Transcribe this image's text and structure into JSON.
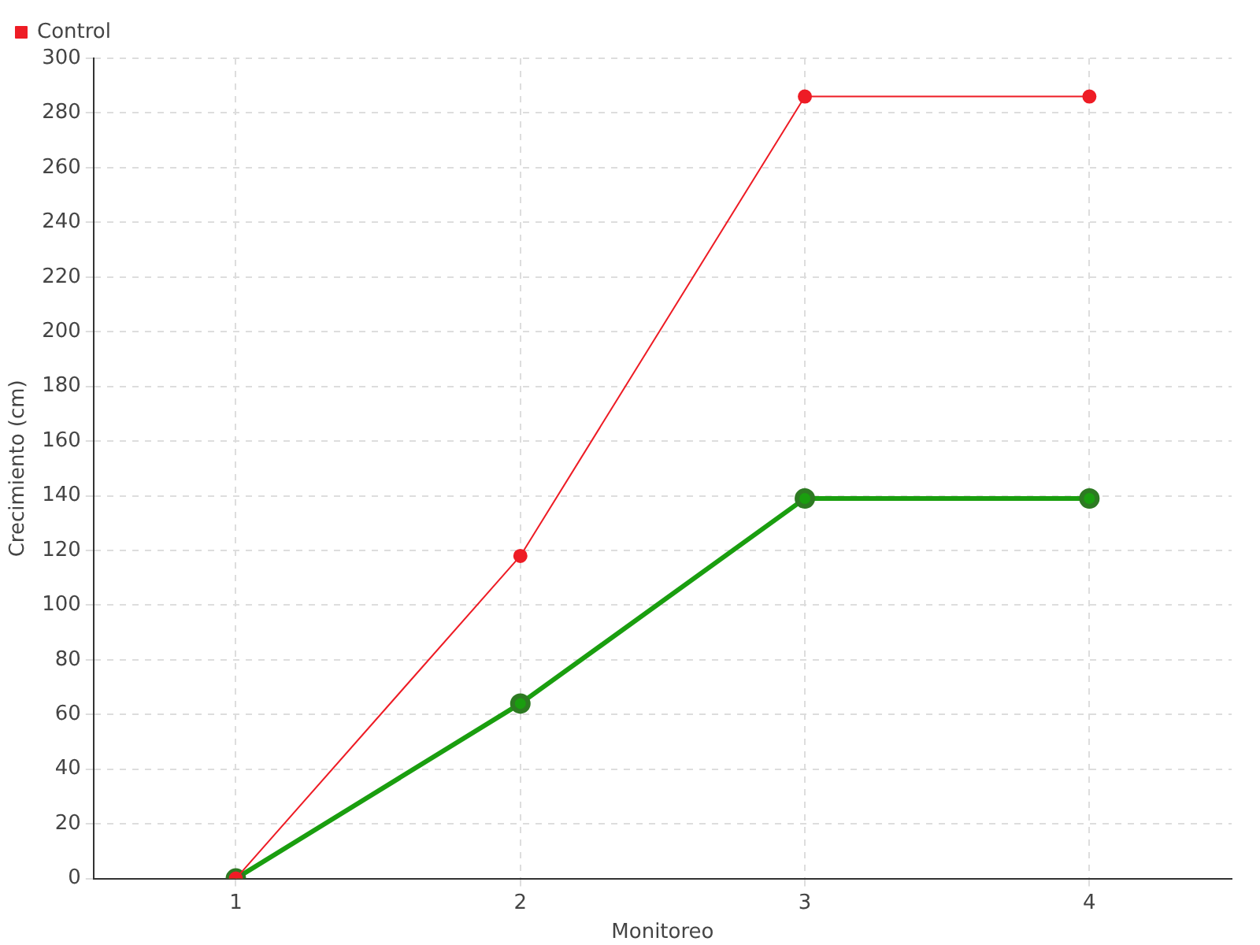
{
  "chart_data": {
    "type": "line",
    "xlabel": "Monitoreo",
    "ylabel": "Crecimiento (cm)",
    "categories": [
      "1",
      "2",
      "3",
      "4"
    ],
    "series": [
      {
        "color": "#1a9e0f",
        "values": [
          0,
          64,
          139,
          139
        ]
      },
      {
        "name": "Control",
        "color": "#ee1c25",
        "values": [
          0,
          118,
          286,
          286
        ]
      }
    ],
    "ylim": [
      0,
      300
    ],
    "yticks": [
      0,
      20,
      40,
      60,
      80,
      100,
      120,
      140,
      160,
      180,
      200,
      220,
      240,
      260,
      280,
      300
    ],
    "grid": true,
    "legend": "top left",
    "marker": "circle",
    "line_style": "solid"
  }
}
